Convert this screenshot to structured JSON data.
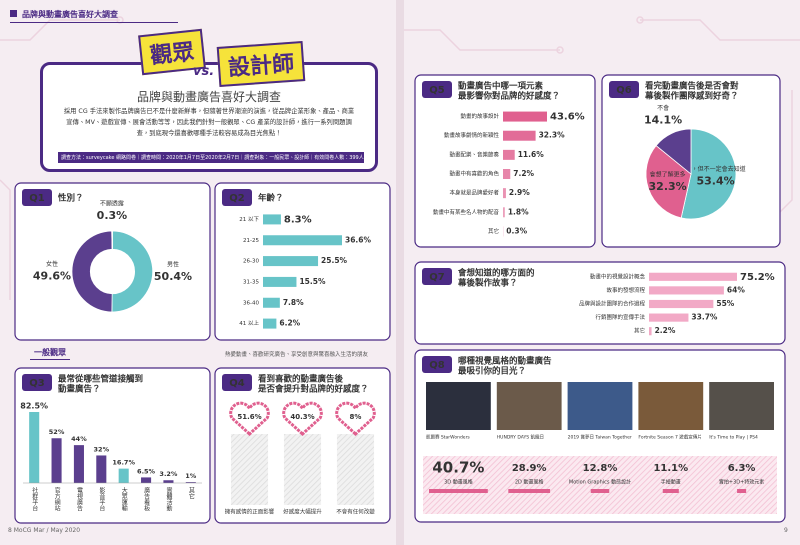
{
  "header": {
    "tag": "品牌與動畫廣告喜好大調查",
    "title_a": "觀眾",
    "vs": "vs.",
    "title_b": "設計師",
    "subtitle": "品牌與動畫廣告喜好大調查",
    "intro": "採用 CG 手法來製作品牌廣告已不是什麼新鮮事，但隨著世界潮流的演進，從品牌企業形象、產品、商業宣傳、MV、遊戲宣傳、展會活動等等，因此我們針對一般觀眾、CG 產業的設計師，進行一系列問題調查，到底現今還喜歡哪種手法較容易成為目光焦點！",
    "method": "調查方法：surveycake 網路問卷｜調查時間：2020年1月7日至2020年2月7日｜調查對象：一般民眾、設計師｜有效問卷人數：399人"
  },
  "section": {
    "label": "一般觀眾",
    "note": "熱愛動畫、喜歡研究廣告、享受創意與驚喜融入生活的朋友"
  },
  "footer": {
    "left": "8  MoCG  Mar / May 2020",
    "right": "9"
  },
  "chart_data": [
    {
      "type": "pie",
      "donut": true,
      "number": "Q1",
      "title": [
        "性別？"
      ],
      "categories": [
        "男性",
        "女性",
        "不願透露"
      ],
      "values": [
        50.4,
        49.6,
        0.3
      ],
      "value_labels": [
        "50.4%",
        "49.6%",
        "0.3%"
      ],
      "colors": [
        "#67c4c8",
        "#5b3f8e",
        "#c9c9c9"
      ]
    },
    {
      "type": "hbar",
      "number": "Q2",
      "title": [
        "年齡？"
      ],
      "categories": [
        "21 以下",
        "21-25",
        "26-30",
        "31-35",
        "36-40",
        "41 以上"
      ],
      "values": [
        8.3,
        36.6,
        25.5,
        15.5,
        7.8,
        6.2
      ],
      "value_labels": [
        "8.3%",
        "36.6%",
        "25.5%",
        "15.5%",
        "7.8%",
        "6.2%"
      ],
      "color": "#67c4c8"
    },
    {
      "type": "vbar",
      "number": "Q3",
      "title": [
        "最常從哪些管道接觸到",
        "動畫廣告？"
      ],
      "categories": [
        "社群平台",
        "官方網站",
        "電視廣告",
        "影音平台",
        "大眾運輸",
        "廣告看板",
        "實體活動",
        "其它"
      ],
      "values": [
        82.5,
        52,
        44,
        32,
        16.7,
        6.5,
        3.2,
        1
      ],
      "value_labels": [
        "82.5%",
        "52%",
        "44%",
        "32%",
        "16.7%",
        "6.5%",
        "3.2%",
        "1%"
      ],
      "colors": [
        "#67c4c8",
        "#5b3f8e",
        "#5b3f8e",
        "#5b3f8e",
        "#67c4c8",
        "#5b3f8e",
        "#5b3f8e",
        "#5b3f8e"
      ]
    },
    {
      "type": "hearts",
      "number": "Q4",
      "title": [
        "看到喜歡的動畫廣告後",
        "是否會提升對品牌的好感度？"
      ],
      "categories": [
        "擁有感情的正面影響",
        "好感度大幅提升",
        "不會有任何改變"
      ],
      "values": [
        51.6,
        40.3,
        8
      ],
      "value_labels": [
        "51.6%",
        "40.3%",
        "8%"
      ],
      "color": "#e0608f"
    },
    {
      "type": "hbar",
      "number": "Q5",
      "title": [
        "動畫廣告中哪一項元素",
        "最影響你對品牌的好感度？"
      ],
      "categories": [
        "動畫的故事設計",
        "動畫故事劇情的新穎性",
        "動畫配樂、音樂節奏",
        "動畫中有喜歡的角色",
        "本身就是品牌愛好者",
        "動畫中有某些名人物的配音",
        "其它"
      ],
      "values": [
        43.6,
        32.3,
        11.6,
        7.2,
        2.9,
        1.8,
        0.3
      ],
      "value_labels": [
        "43.6%",
        "32.3%",
        "11.6%",
        "7.2%",
        "2.9%",
        "1.8%",
        "0.3%"
      ],
      "color": "#e0608f"
    },
    {
      "type": "pie",
      "donut": false,
      "number": "Q6",
      "title": [
        "看完動畫廣告後是否會對",
        "幕後製作團隊感到好奇？"
      ],
      "categories": [
        "會，但不一定會去知道",
        "會想了解更多",
        "不會"
      ],
      "values": [
        53.4,
        32.3,
        14.1
      ],
      "value_labels": [
        "53.4%",
        "32.3%",
        "14.1%"
      ],
      "colors": [
        "#67c4c8",
        "#e0608f",
        "#5b3f8e"
      ]
    },
    {
      "type": "hbar",
      "number": "Q7",
      "title": [
        "會想知道的哪方面的",
        "幕後製作故事？"
      ],
      "categories": [
        "動畫中的視覺設計概念",
        "故事的發想流程",
        "品牌與設計團隊的合作過程",
        "行銷團隊的宣傳手法",
        "其它"
      ],
      "values": [
        75.2,
        64,
        55,
        33.7,
        2.2
      ],
      "value_labels": [
        "75.2%",
        "64%",
        "55%",
        "33.7%",
        "2.2%"
      ],
      "color": "#f2a9c6"
    },
    {
      "type": "stats",
      "number": "Q8",
      "title": [
        "哪種視覺風格的動畫廣告",
        "最吸引你的目光？"
      ],
      "images": [
        "凱爾賽 StarWonders",
        "HUNDRY DAYS 飢餓日",
        "2019 賞夢日 Taiwan Together",
        "Fortnite Season 7 遊戲宣傳片",
        "It's Time to Play | PS4"
      ],
      "categories": [
        "3D 動畫風格",
        "2D 動畫風格",
        "Motion Graphics 動態設計",
        "手繪動畫",
        "實拍+3D+特效元素"
      ],
      "values": [
        40.7,
        28.9,
        12.8,
        11.1,
        6.3
      ],
      "value_labels": [
        "40.7%",
        "28.9%",
        "12.8%",
        "11.1%",
        "6.3%"
      ],
      "color": "#e0608f"
    }
  ]
}
